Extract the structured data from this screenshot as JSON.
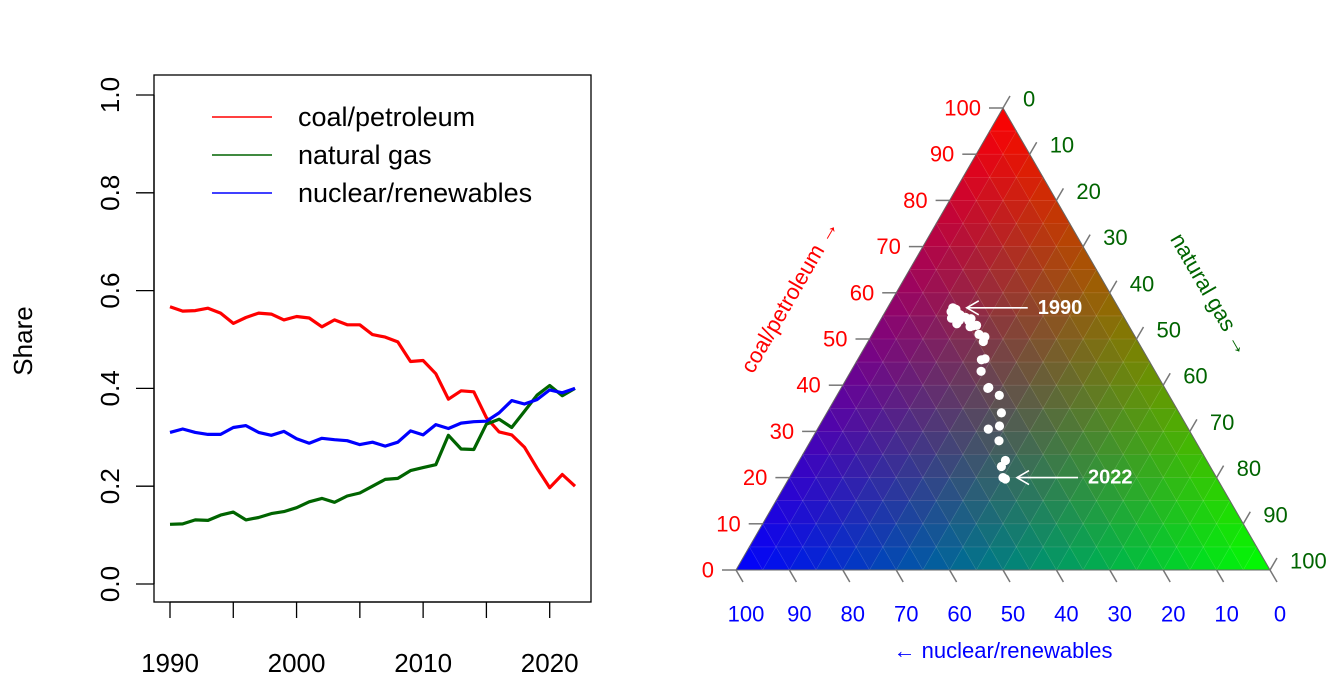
{
  "chart_data": [
    {
      "type": "line",
      "ylabel": "Share",
      "ylim": [
        0,
        1
      ],
      "xlim": [
        1990,
        2022
      ],
      "x_ticks": [
        "1990",
        "2000",
        "2010",
        "2020"
      ],
      "y_ticks": [
        "0.0",
        "0.2",
        "0.4",
        "0.6",
        "0.8",
        "1.0"
      ],
      "legend_position": "top",
      "x": [
        1990,
        1991,
        1992,
        1993,
        1994,
        1995,
        1996,
        1997,
        1998,
        1999,
        2000,
        2001,
        2002,
        2003,
        2004,
        2005,
        2006,
        2007,
        2008,
        2009,
        2010,
        2011,
        2012,
        2013,
        2014,
        2015,
        2016,
        2017,
        2018,
        2019,
        2020,
        2021,
        2022
      ],
      "series": [
        {
          "name": "coal/petroleum",
          "color": "#ff0000",
          "values": [
            0.567,
            0.558,
            0.559,
            0.564,
            0.554,
            0.533,
            0.545,
            0.554,
            0.552,
            0.54,
            0.547,
            0.544,
            0.526,
            0.54,
            0.53,
            0.53,
            0.51,
            0.505,
            0.495,
            0.455,
            0.457,
            0.43,
            0.378,
            0.395,
            0.393,
            0.34,
            0.311,
            0.305,
            0.28,
            0.237,
            0.197,
            0.224,
            0.2
          ]
        },
        {
          "name": "natural gas",
          "color": "#006400",
          "values": [
            0.122,
            0.123,
            0.131,
            0.13,
            0.141,
            0.147,
            0.131,
            0.136,
            0.144,
            0.148,
            0.156,
            0.168,
            0.175,
            0.167,
            0.18,
            0.186,
            0.2,
            0.214,
            0.216,
            0.232,
            0.238,
            0.244,
            0.304,
            0.276,
            0.275,
            0.327,
            0.337,
            0.32,
            0.353,
            0.386,
            0.406,
            0.385,
            0.4
          ]
        },
        {
          "name": "nuclear/renewables",
          "color": "#0000ff",
          "values": [
            0.31,
            0.317,
            0.31,
            0.306,
            0.306,
            0.32,
            0.324,
            0.31,
            0.304,
            0.312,
            0.297,
            0.288,
            0.298,
            0.295,
            0.293,
            0.285,
            0.29,
            0.282,
            0.29,
            0.313,
            0.305,
            0.326,
            0.318,
            0.329,
            0.332,
            0.333,
            0.35,
            0.375,
            0.368,
            0.377,
            0.397,
            0.391,
            0.4
          ]
        }
      ]
    },
    {
      "type": "ternary",
      "axes": [
        {
          "name": "coal/petroleum",
          "label": "coal/petroleum →",
          "color": "#ff0000",
          "ticks": [
            "0",
            "10",
            "20",
            "30",
            "40",
            "50",
            "60",
            "70",
            "80",
            "90",
            "100"
          ]
        },
        {
          "name": "natural gas",
          "label": "natural gas →",
          "color": "#006400",
          "ticks": [
            "0",
            "10",
            "20",
            "30",
            "40",
            "50",
            "60",
            "70",
            "80",
            "90",
            "100"
          ]
        },
        {
          "name": "nuclear/renewables",
          "label": "← nuclear/renewables",
          "color": "#0000ff",
          "ticks": [
            "100",
            "90",
            "80",
            "70",
            "60",
            "50",
            "40",
            "30",
            "20",
            "10",
            "0"
          ]
        }
      ],
      "points_color": "#ffffff",
      "annotations": [
        {
          "text": "1990",
          "year_index": 0
        },
        {
          "text": "2022",
          "year_index": 32
        }
      ]
    }
  ]
}
